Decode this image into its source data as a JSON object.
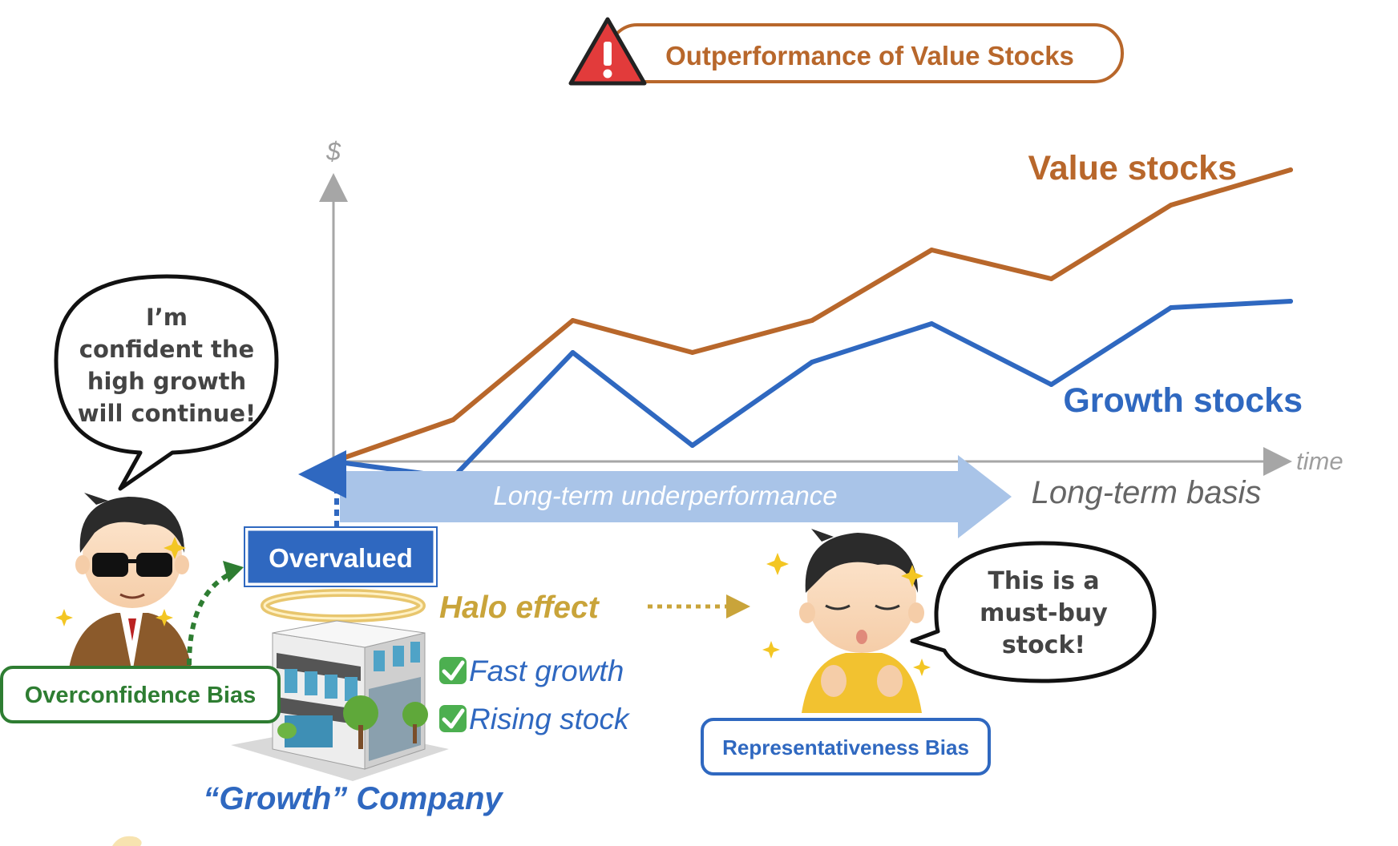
{
  "title": {
    "text": "Outperformance of Value Stocks",
    "warning_icon": "exclamation-triangle-icon",
    "border_color": "#B8672B",
    "text_color": "#B8672B",
    "icon_color": "#E23B3B"
  },
  "chart": {
    "y_axis_label": "$",
    "x_axis_label": "time",
    "axis_color": "#A6A6A6"
  },
  "chart_data": {
    "type": "line",
    "x": [
      0,
      1,
      2,
      3,
      4,
      5,
      6,
      7,
      8
    ],
    "series": [
      {
        "name": "Value stocks",
        "color": "#B8672B",
        "values": [
          0,
          1.3,
          4.4,
          3.4,
          4.4,
          6.6,
          5.7,
          8.0,
          9.1
        ]
      },
      {
        "name": "Growth stocks",
        "color": "#2F68C0",
        "values": [
          0,
          -0.5,
          3.4,
          0.5,
          3.1,
          4.3,
          2.4,
          4.8,
          5.0
        ]
      }
    ]
  },
  "underperformance_arrow": {
    "label": "Long-term underperformance",
    "basis_label": "Long-term basis",
    "arrow_color": "#A9C4E8"
  },
  "overvalued": {
    "label": "Overvalued",
    "color": "#2F68C0"
  },
  "halo": {
    "label": "Halo effect",
    "color": "#C9A43A"
  },
  "company": {
    "label": "“Growth” Company",
    "checks": [
      {
        "icon": "check-box-icon",
        "text": "Fast growth"
      },
      {
        "icon": "check-box-icon",
        "text": "Rising stock"
      }
    ]
  },
  "left_character": {
    "speech": [
      "I’m",
      "confident the",
      "high growth",
      "will continue!"
    ],
    "bias_label": "Overconfidence Bias",
    "bias_color": "#2E7D32"
  },
  "right_character": {
    "speech": [
      "This is a",
      "must-buy",
      "stock!"
    ],
    "bias_label": "Representativeness Bias",
    "bias_color": "#2F68C0"
  }
}
